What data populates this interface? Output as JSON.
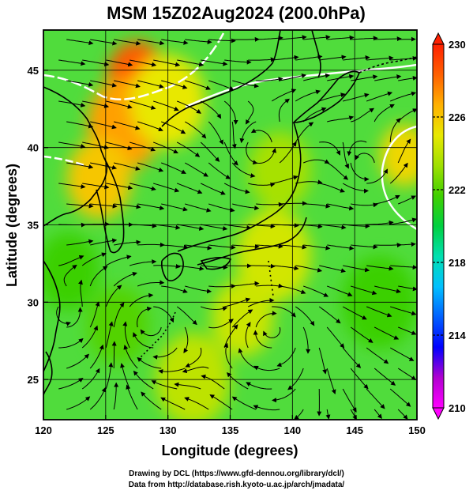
{
  "title": "MSM 15Z02Aug2024 (200.0hPa)",
  "xlabel": "Longitude (degrees)",
  "ylabel": "Latitude  (degrees)",
  "credit_line1": "Drawing by DCL (https://www.gfd-dennou.org/library/dcl/)",
  "credit_line2": "Data from http://database.rish.kyoto-u.ac.jp/arch/jmadata/",
  "map": {
    "lon_range": [
      120,
      150
    ],
    "lat_range": [
      22.4,
      47.6
    ],
    "lon_ticks": [
      {
        "v": 120,
        "label": "120"
      },
      {
        "v": 125,
        "label": "125"
      },
      {
        "v": 130,
        "label": "130"
      },
      {
        "v": 135,
        "label": "135"
      },
      {
        "v": 140,
        "label": "140"
      },
      {
        "v": 145,
        "label": "145"
      },
      {
        "v": 150,
        "label": "150"
      }
    ],
    "lat_ticks": [
      {
        "v": 25,
        "label": "25"
      },
      {
        "v": 30,
        "label": "30"
      },
      {
        "v": 35,
        "label": "35"
      },
      {
        "v": 40,
        "label": "40"
      },
      {
        "v": 45,
        "label": "45"
      }
    ],
    "grid": true
  },
  "colorbar": {
    "range": [
      210,
      230
    ],
    "ticks": [
      {
        "v": 210,
        "label": "210"
      },
      {
        "v": 214,
        "label": "214"
      },
      {
        "v": 218,
        "label": "218"
      },
      {
        "v": 222,
        "label": "222"
      },
      {
        "v": 226,
        "label": "226"
      },
      {
        "v": 230,
        "label": "230"
      }
    ],
    "dashed_levels": [
      214,
      218,
      222,
      226
    ],
    "colors": [
      "#ff00ff",
      "#b000d0",
      "#0000ff",
      "#0060ff",
      "#00c0ff",
      "#00e0b0",
      "#00d040",
      "#40d000",
      "#a0e000",
      "#e8e800",
      "#ffb000",
      "#ff6000",
      "#ff2000"
    ]
  },
  "colors": {
    "field_base": "#50dc3c",
    "streamline": "#000000",
    "coast": "#000000",
    "contour_white": "#ffffff"
  },
  "hotspots": [
    {
      "lon": 127.5,
      "lat": 44.5,
      "value": 228.5,
      "r": 2.4
    },
    {
      "lon": 126.5,
      "lat": 41.5,
      "value": 227.0,
      "r": 3.0
    },
    {
      "lon": 124.5,
      "lat": 38.0,
      "value": 226.0,
      "r": 2.6
    },
    {
      "lon": 130.0,
      "lat": 43.0,
      "value": 225.0,
      "r": 3.0
    },
    {
      "lon": 150.0,
      "lat": 39.0,
      "value": 228.0,
      "r": 1.0
    },
    {
      "lon": 149.0,
      "lat": 39.5,
      "value": 225.5,
      "r": 2.0
    },
    {
      "lon": 138.5,
      "lat": 33.0,
      "value": 224.5,
      "r": 3.0
    },
    {
      "lon": 136.0,
      "lat": 29.0,
      "value": 224.3,
      "r": 2.5
    },
    {
      "lon": 132.0,
      "lat": 25.0,
      "value": 224.0,
      "r": 3.0
    },
    {
      "lon": 139.0,
      "lat": 38.5,
      "value": 223.5,
      "r": 2.5
    },
    {
      "lon": 122.0,
      "lat": 32.0,
      "value": 221.5,
      "r": 2.5
    },
    {
      "lon": 147.0,
      "lat": 30.0,
      "value": 221.5,
      "r": 3.0
    },
    {
      "lon": 126.0,
      "lat": 28.5,
      "value": 222.0,
      "r": 2.5
    }
  ],
  "flow": {
    "vortices": [
      {
        "lon": 137.2,
        "lat": 39.5,
        "strength": 1.0,
        "sense": "anticyclonic"
      },
      {
        "lon": 128.5,
        "lat": 28.8,
        "strength": 1.0,
        "sense": "cyclonic"
      },
      {
        "lon": 138.5,
        "lat": 28.5,
        "strength": 0.8,
        "sense": "cyclonic"
      },
      {
        "lon": 146.0,
        "lat": 38.5,
        "strength": 0.9,
        "sense": "anticyclonic"
      },
      {
        "lon": 122.0,
        "lat": 29.0,
        "strength": 0.6,
        "sense": "anticyclonic"
      }
    ],
    "background": "westerly-north"
  }
}
